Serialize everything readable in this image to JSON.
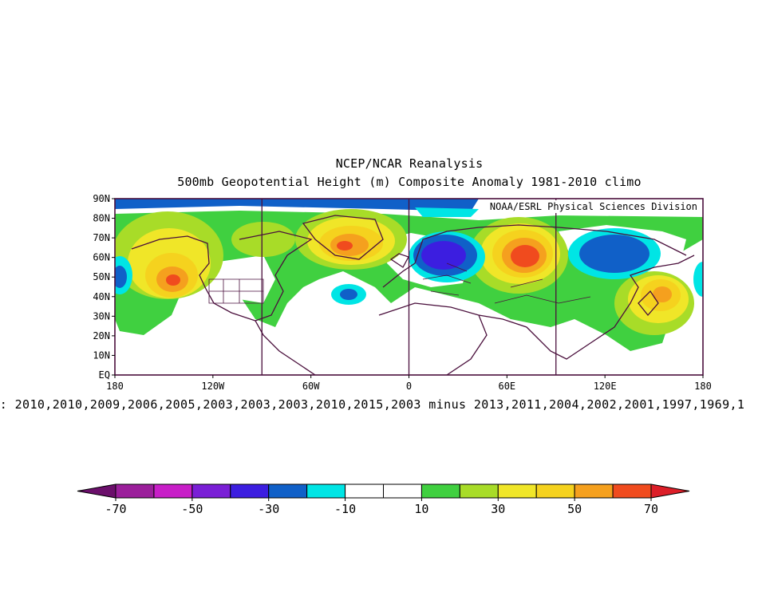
{
  "titles": {
    "line1": "NCEP/NCAR Reanalysis",
    "line2": "500mb Geopotential Height (m) Composite Anomaly 1981-2010 climo"
  },
  "credit": "NOAA/ESRL Physical Sciences Division",
  "composite_text": "Aug : 2010,2010,2009,2006,2005,2003,2003,2003,2010,2015,2003 minus 2013,2011,2004,2002,2001,1997,1969,1",
  "map": {
    "lon_ticks": [
      "180",
      "120W",
      "60W",
      "0",
      "60E",
      "120E",
      "180"
    ],
    "lat_ticks": [
      "EQ",
      "10N",
      "20N",
      "30N",
      "40N",
      "50N",
      "60N",
      "70N",
      "80N",
      "90N"
    ],
    "extent": {
      "lon": [
        -180,
        180
      ],
      "lat": [
        0,
        90
      ]
    },
    "vertical_lines_lon": [
      -90,
      0,
      90
    ],
    "anomaly_centers": [
      {
        "name": "alaska-high",
        "lon": -145,
        "lat": 49,
        "level": 60
      },
      {
        "name": "greenland-high",
        "lon": -40,
        "lat": 66,
        "level": 60
      },
      {
        "name": "russia-high",
        "lon": 68,
        "lat": 61,
        "level": 70
      },
      {
        "name": "japan-high",
        "lon": 155,
        "lat": 42,
        "level": 50
      },
      {
        "name": "scandinavia-low",
        "lon": 15,
        "lat": 62,
        "level": -40
      },
      {
        "name": "east-siberia-low",
        "lon": 125,
        "lat": 60,
        "level": -30
      },
      {
        "name": "atlantic-low",
        "lon": -37,
        "lat": 42,
        "level": -30
      },
      {
        "name": "pacific-low",
        "lon": -175,
        "lat": 52,
        "level": -30
      }
    ]
  },
  "colorbar": {
    "labels": [
      "-70",
      "-50",
      "-30",
      "-10",
      "10",
      "30",
      "50",
      "70"
    ],
    "colors": {
      "lt-70": "#6b0f6b",
      "-70_-60": "#9b1f9b",
      "-60_-50": "#c81ec8",
      "-50_-40": "#7a1fd6",
      "-40_-30": "#3c1ee0",
      "-30_-20": "#1060c8",
      "-20_-10": "#00e5e5",
      "-10_0": "#ffffff",
      "0_10": "#ffffff",
      "10_20": "#40d040",
      "20_30": "#a8dc28",
      "30_40": "#f0e628",
      "40_50": "#f5d21e",
      "50_60": "#f5a01e",
      "60_70": "#f04b1e",
      "gt70": "#dc1e28"
    }
  }
}
